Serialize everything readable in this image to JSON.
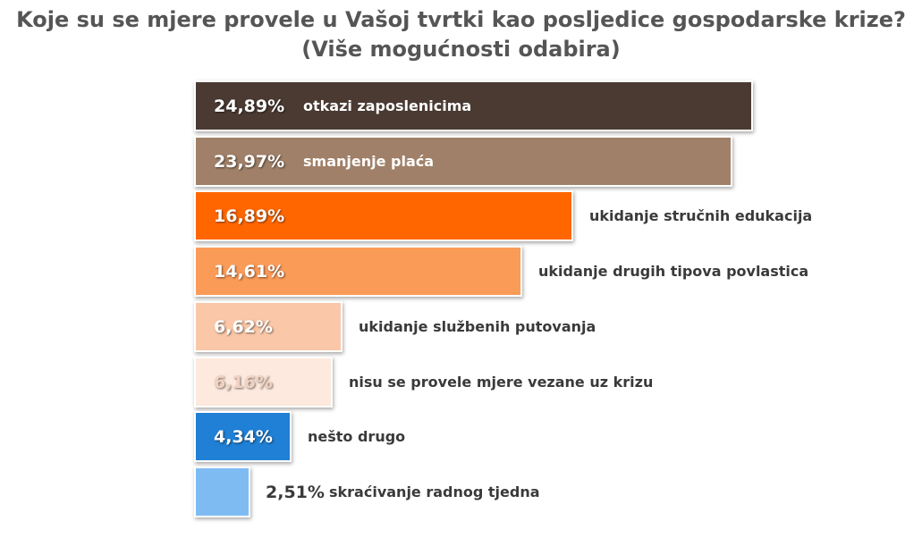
{
  "chart_data": {
    "type": "bar",
    "orientation": "horizontal",
    "title": "Koje su se mjere provele u Vašoj tvrtki kao posljedice gospodarske krize?",
    "subtitle": "(Više mogućnosti odabira)",
    "categories": [
      "otkazi zaposlenicima",
      "smanjenje plaća",
      "ukidanje stručnih edukacija",
      "ukidanje drugih tipova povlastica",
      "ukidanje službenih putovanja",
      "nisu se provele mjere vezane uz krizu",
      "nešto drugo",
      "skraćivanje radnog tjedna"
    ],
    "values": [
      24.89,
      23.97,
      16.89,
      14.61,
      6.62,
      6.16,
      4.34,
      2.51
    ],
    "value_labels": [
      "24,89%",
      "23,97%",
      "16,89%",
      "14,61%",
      "6,62%",
      "6,16%",
      "4,34%",
      "2,51%"
    ],
    "colors": [
      "#4a3a32",
      "#a08068",
      "#ff6600",
      "#fb9b58",
      "#fac8a8",
      "#fde9dd",
      "#1f80d6",
      "#7fbbf3"
    ],
    "label_colors": [
      "#ffffff",
      "#ffffff",
      "#ffffff",
      "#ffffff",
      "#ffffff",
      "#f2d2c2",
      "#ffffff",
      "#3a3a3a"
    ],
    "category_colors": [
      "#ffffff",
      "#ffffff",
      "#3a3a3a",
      "#3a3a3a",
      "#3a3a3a",
      "#3a3a3a",
      "#3a3a3a",
      "#3a3a3a"
    ],
    "ylim": [
      0,
      25
    ],
    "grid": false,
    "legend": "none"
  }
}
